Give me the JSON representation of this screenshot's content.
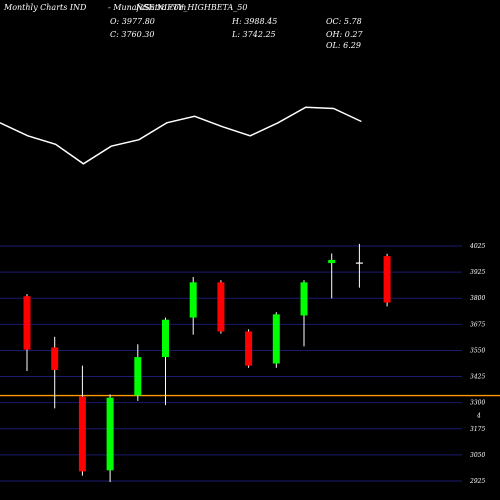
{
  "header": {
    "left": "Monthly Charts IND",
    "symbol": "- MunafaSutra.com",
    "symbol_overlay": "NSE:NIFTY_HIGHBETA_50",
    "open": "O: 3977.80",
    "close": "C: 3760.30",
    "high": "H: 3988.45",
    "low": "L: 3742.25",
    "oc": "OC: 5.78",
    "oh": "OH: 0.27",
    "ol": "OL: 6.29"
  },
  "colors": {
    "background": "#000000",
    "up": "#00ff00",
    "down": "#ff0000",
    "grid": "#1a1a6e",
    "reference": "#ff9900",
    "line": "#ffffff"
  },
  "chart_data": [
    {
      "type": "line",
      "title": "",
      "series": [
        {
          "values": [
            88,
            68,
            55,
            25,
            52,
            62,
            88,
            98,
            82,
            68,
            88,
            112,
            110,
            90
          ]
        }
      ]
    },
    {
      "type": "candlestick",
      "y_ticks": [
        "4025",
        "3925",
        "3800",
        "3675",
        "3550",
        "3425",
        "3300",
        "3175",
        "3050",
        "2925"
      ],
      "current_marker": "4",
      "reference_level": 3325,
      "candles": [
        {
          "open": 3790,
          "high": 3800,
          "low": 3440,
          "close": 3540
        },
        {
          "open": 3550,
          "high": 3600,
          "low": 3265,
          "close": 3445
        },
        {
          "open": 3320,
          "high": 3465,
          "low": 2950,
          "close": 2970
        },
        {
          "open": 2975,
          "high": 3330,
          "low": 2920,
          "close": 3315
        },
        {
          "open": 3325,
          "high": 3565,
          "low": 3300,
          "close": 3505
        },
        {
          "open": 3505,
          "high": 3690,
          "low": 3280,
          "close": 3680
        },
        {
          "open": 3690,
          "high": 3880,
          "low": 3610,
          "close": 3855
        },
        {
          "open": 3855,
          "high": 3865,
          "low": 3615,
          "close": 3625
        },
        {
          "open": 3625,
          "high": 3635,
          "low": 3455,
          "close": 3465
        },
        {
          "open": 3475,
          "high": 3715,
          "low": 3455,
          "close": 3705
        },
        {
          "open": 3700,
          "high": 3865,
          "low": 3555,
          "close": 3855
        },
        {
          "open": 3945,
          "high": 3990,
          "low": 3780,
          "close": 3960
        },
        {
          "open": 3945,
          "high": 4035,
          "low": 3830,
          "close": 3945
        },
        {
          "open": 3977.8,
          "high": 3988.45,
          "low": 3742.25,
          "close": 3760.3
        }
      ]
    }
  ]
}
